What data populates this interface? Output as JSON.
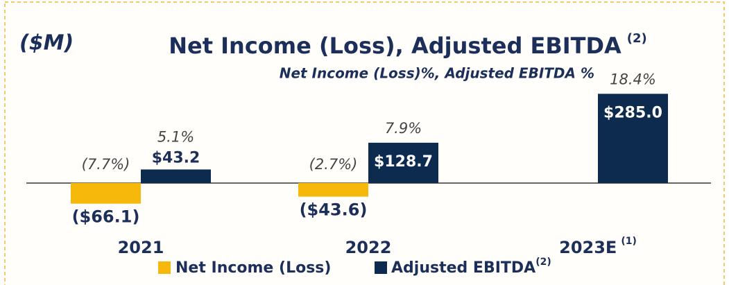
{
  "chart_data": {
    "type": "bar",
    "unit_label": "($M)",
    "title": "Net Income (Loss), Adjusted EBITDA",
    "title_note": "(2)",
    "subtitle": "Net Income (Loss)%, Adjusted EBITDA %",
    "categories": [
      "2021",
      "2022",
      "2023E"
    ],
    "category_notes": [
      null,
      null,
      "(1)"
    ],
    "ylim": [
      -80,
      310
    ],
    "series": [
      {
        "name": "Net Income (Loss)",
        "color": "#f6b80a",
        "values": [
          -66.1,
          -43.6,
          null
        ],
        "value_labels": [
          "($66.1)",
          "($43.6)",
          null
        ],
        "margins": [
          -7.7,
          -2.7,
          null
        ],
        "margin_labels": [
          "(7.7%)",
          "(2.7%)",
          null
        ]
      },
      {
        "name": "Adjusted EBITDA",
        "name_note": "(2)",
        "color": "#0d2b4e",
        "values": [
          43.2,
          128.7,
          285.0
        ],
        "value_labels": [
          "$43.2",
          "$128.7",
          "$285.0"
        ],
        "margins": [
          5.1,
          7.9,
          18.4
        ],
        "margin_labels": [
          "5.1%",
          "7.9%",
          "18.4%"
        ]
      }
    ]
  }
}
